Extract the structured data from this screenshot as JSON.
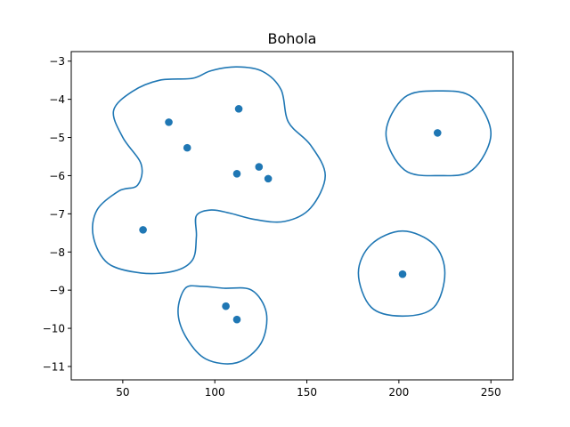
{
  "chart_data": {
    "type": "scatter",
    "title": "Bohola",
    "xlabel": "",
    "ylabel": "",
    "xlim": [
      22,
      262
    ],
    "ylim": [
      -11.35,
      -2.75
    ],
    "xticks": [
      50,
      100,
      150,
      200,
      250
    ],
    "yticks": [
      -3,
      -4,
      -5,
      -6,
      -7,
      -8,
      -9,
      -10,
      -11
    ],
    "xtick_labels": [
      "50",
      "100",
      "150",
      "200",
      "250"
    ],
    "ytick_labels": [
      "−3",
      "−4",
      "−5",
      "−6",
      "−7",
      "−8",
      "−9",
      "−10",
      "−11"
    ],
    "grid": false,
    "color": "#1f77b4",
    "points": [
      {
        "x": 75,
        "y": -4.6
      },
      {
        "x": 113,
        "y": -4.25
      },
      {
        "x": 85,
        "y": -5.27
      },
      {
        "x": 124,
        "y": -5.77
      },
      {
        "x": 112,
        "y": -5.95
      },
      {
        "x": 129,
        "y": -6.08
      },
      {
        "x": 61,
        "y": -7.42
      },
      {
        "x": 221,
        "y": -4.88
      },
      {
        "x": 202,
        "y": -8.58
      },
      {
        "x": 106,
        "y": -9.42
      },
      {
        "x": 112,
        "y": -9.77
      }
    ],
    "contours": [
      [
        [
          112,
          -3.15
        ],
        [
          126,
          -3.27
        ],
        [
          136,
          -3.75
        ],
        [
          140,
          -4.6
        ],
        [
          152,
          -5.2
        ],
        [
          160,
          -6.0
        ],
        [
          152,
          -6.85
        ],
        [
          138,
          -7.2
        ],
        [
          122,
          -7.15
        ],
        [
          108,
          -6.98
        ],
        [
          98,
          -6.9
        ],
        [
          90,
          -7.05
        ],
        [
          90,
          -7.6
        ],
        [
          88,
          -8.2
        ],
        [
          78,
          -8.5
        ],
        [
          60,
          -8.55
        ],
        [
          42,
          -8.3
        ],
        [
          34,
          -7.6
        ],
        [
          36,
          -6.9
        ],
        [
          48,
          -6.4
        ],
        [
          58,
          -6.25
        ],
        [
          60,
          -5.7
        ],
        [
          50,
          -5.0
        ],
        [
          45,
          -4.3
        ],
        [
          55,
          -3.8
        ],
        [
          70,
          -3.5
        ],
        [
          88,
          -3.45
        ],
        [
          98,
          -3.25
        ]
      ],
      [
        [
          105,
          -8.95
        ],
        [
          120,
          -9.0
        ],
        [
          128,
          -9.6
        ],
        [
          125,
          -10.4
        ],
        [
          112,
          -10.9
        ],
        [
          95,
          -10.8
        ],
        [
          84,
          -10.2
        ],
        [
          80,
          -9.55
        ],
        [
          84,
          -8.95
        ],
        [
          93,
          -8.9
        ]
      ],
      [
        [
          222,
          -3.78
        ],
        [
          240,
          -3.95
        ],
        [
          250,
          -4.9
        ],
        [
          240,
          -5.85
        ],
        [
          222,
          -6.0
        ],
        [
          203,
          -5.85
        ],
        [
          193,
          -4.9
        ],
        [
          203,
          -3.95
        ]
      ],
      [
        [
          202,
          -7.45
        ],
        [
          219,
          -7.8
        ],
        [
          225,
          -8.55
        ],
        [
          219,
          -9.45
        ],
        [
          202,
          -9.68
        ],
        [
          185,
          -9.45
        ],
        [
          178,
          -8.55
        ],
        [
          185,
          -7.8
        ]
      ]
    ]
  }
}
